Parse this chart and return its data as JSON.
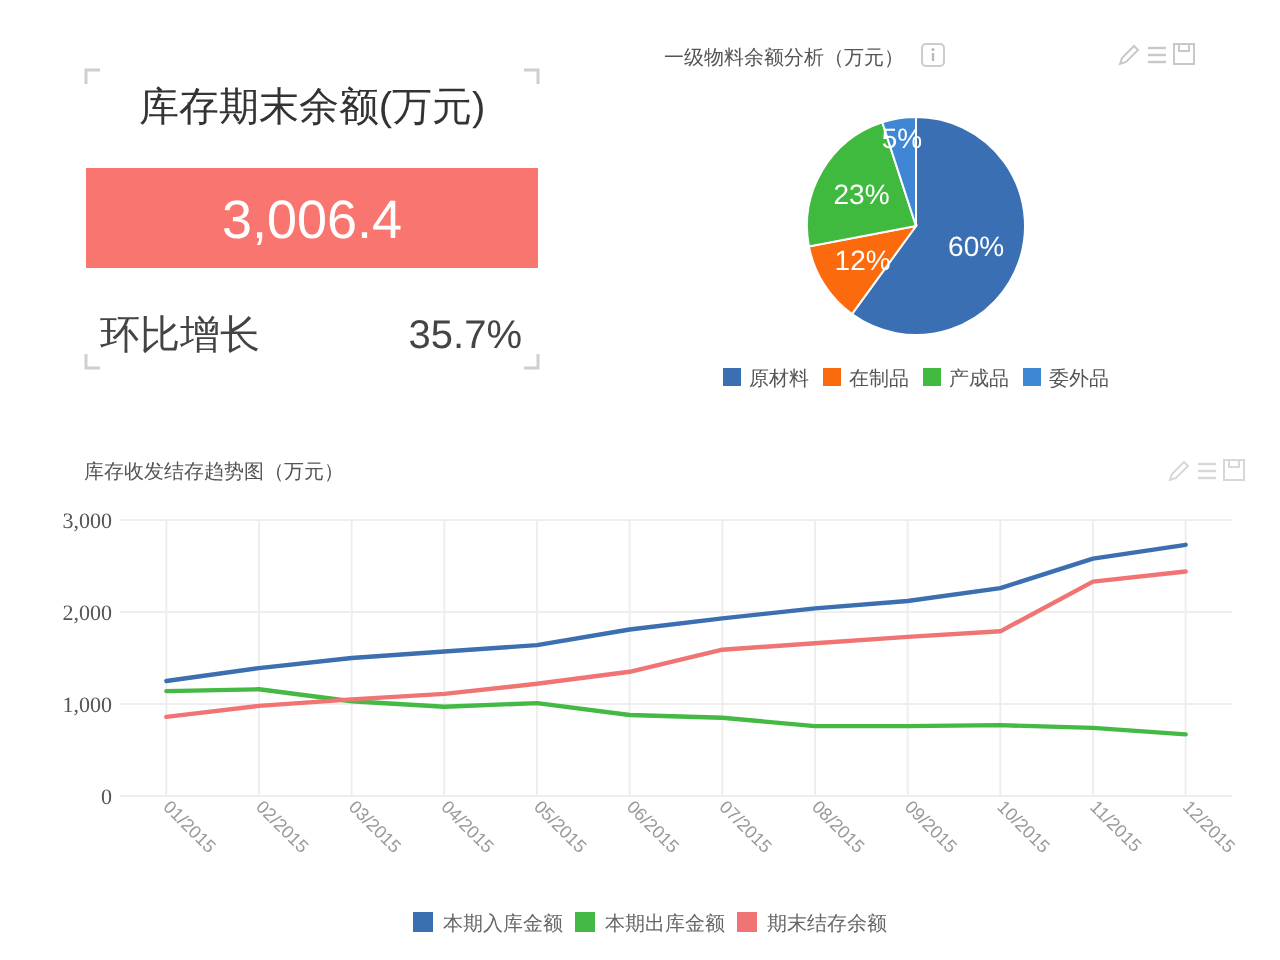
{
  "chart_data": [
    {
      "type": "other",
      "title": "库存期末余额(万元)",
      "annotations": [
        "3,006.4",
        "环比增长",
        "35.7%"
      ],
      "color": "#f8766f"
    },
    {
      "type": "pie",
      "title": "一级物料余额分析（万元）",
      "categories": [
        "原材料",
        "在制品",
        "产成品",
        "委外品"
      ],
      "values": [
        60,
        12,
        23,
        5
      ],
      "colors": [
        "#3a6fb3",
        "#fb6a0c",
        "#3fba3f",
        "#3f86d4"
      ],
      "value_labels": [
        "60%",
        "12%",
        "23%",
        "5%"
      ],
      "legend": "bottom"
    },
    {
      "type": "line",
      "title": "库存收发结存趋势图（万元）",
      "categories": [
        "01/2015",
        "02/2015",
        "03/2015",
        "04/2015",
        "05/2015",
        "06/2015",
        "07/2015",
        "08/2015",
        "09/2015",
        "10/2015",
        "11/2015",
        "12/2015"
      ],
      "series": [
        {
          "name": "本期入库金额",
          "color": "#3b6fb0",
          "values": [
            1250,
            1390,
            1500,
            1570,
            1640,
            1810,
            1930,
            2040,
            2120,
            2260,
            2580,
            2730
          ]
        },
        {
          "name": "本期出库金额",
          "color": "#44b944",
          "values": [
            1140,
            1160,
            1030,
            970,
            1010,
            880,
            850,
            760,
            760,
            770,
            740,
            670
          ]
        },
        {
          "name": "期末结存余额",
          "color": "#f07474",
          "values": [
            860,
            980,
            1050,
            1110,
            1220,
            1350,
            1590,
            1660,
            1730,
            1790,
            2330,
            2440
          ]
        }
      ],
      "ylim": [
        0,
        3000
      ],
      "yticks": [
        0,
        {
          "value": 1000,
          "label": "1,000"
        },
        {
          "value": 2000,
          "label": "2,000"
        },
        {
          "value": 3000,
          "label": "3,000"
        }
      ],
      "grid": true,
      "legend": "bottom"
    }
  ]
}
